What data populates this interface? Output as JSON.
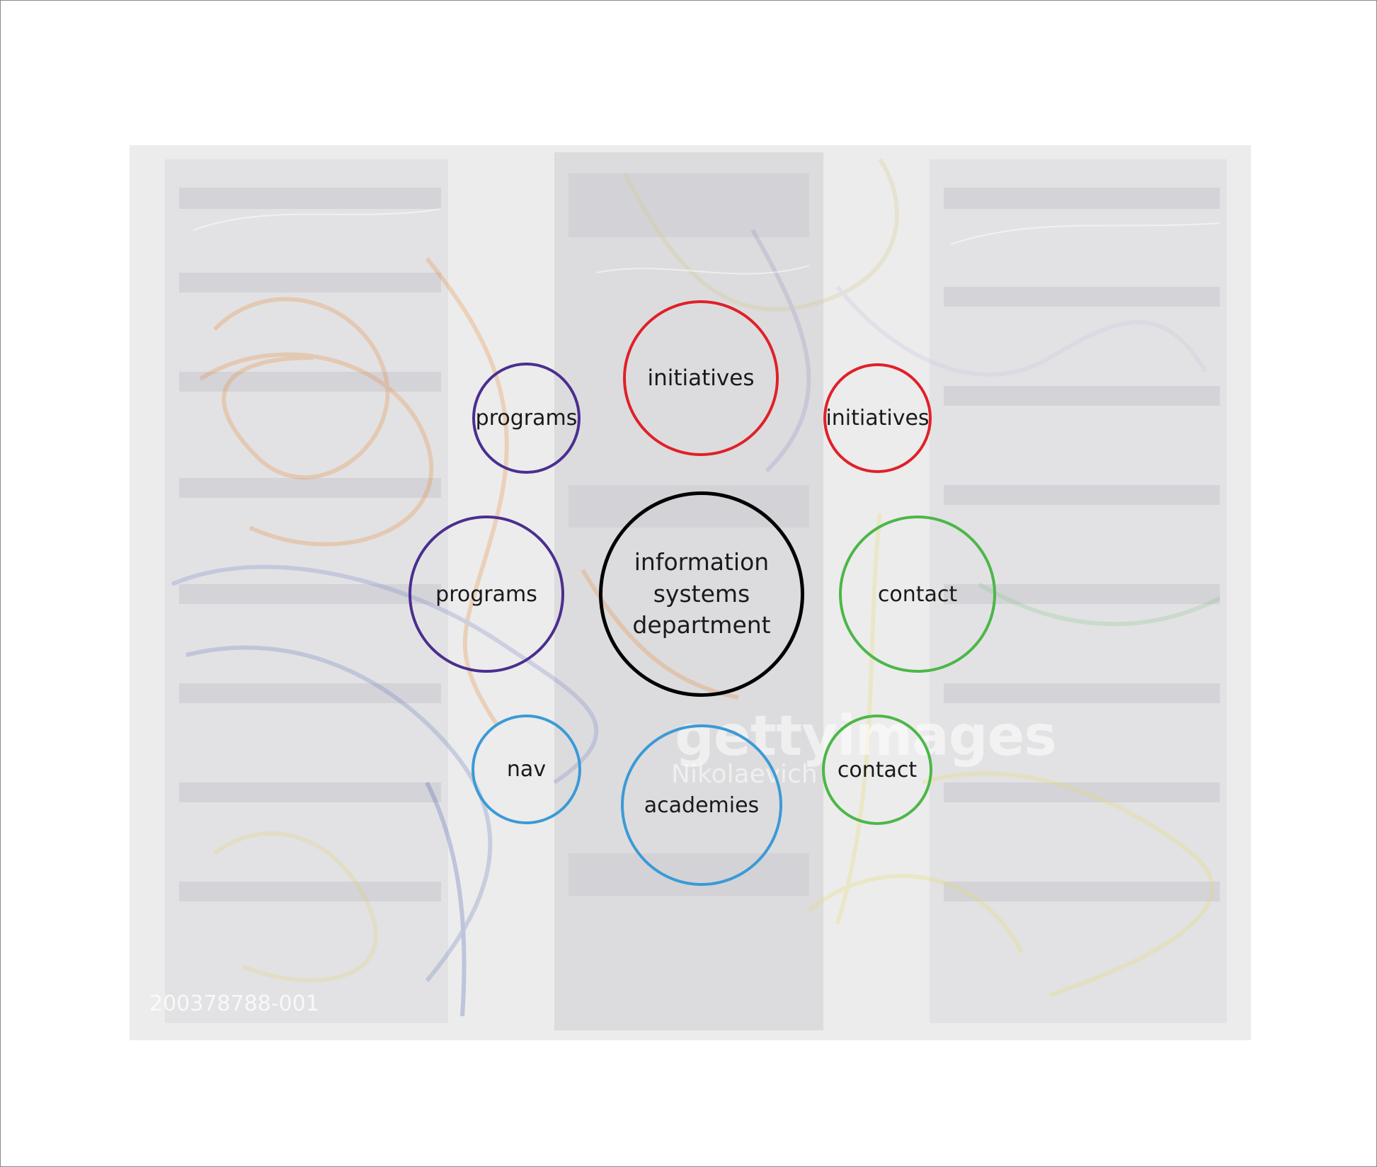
{
  "diagram": {
    "center": {
      "label": "information\nsystems\ndepartment",
      "color": "#000000"
    },
    "nodes": [
      {
        "id": "initiatives-large",
        "label": "initiatives",
        "color": "#e02028"
      },
      {
        "id": "initiatives-small",
        "label": "initiatives",
        "color": "#e02028"
      },
      {
        "id": "programs-small",
        "label": "programs",
        "color": "#4b2e8f"
      },
      {
        "id": "programs-large",
        "label": "programs",
        "color": "#4b2e8f"
      },
      {
        "id": "contact-large",
        "label": "contact",
        "color": "#4cb748"
      },
      {
        "id": "contact-small",
        "label": "contact",
        "color": "#4cb748"
      },
      {
        "id": "nav-small",
        "label": "nav",
        "color": "#3b9ad6"
      },
      {
        "id": "academies-large",
        "label": "academies",
        "color": "#3b9ad6"
      }
    ]
  },
  "background_photo": {
    "description_icon": "server-rack-cables-photo",
    "watermark_brand": "gettyimages",
    "watermark_name": "Nikolaevich",
    "watermark_id": "200378788-001"
  }
}
